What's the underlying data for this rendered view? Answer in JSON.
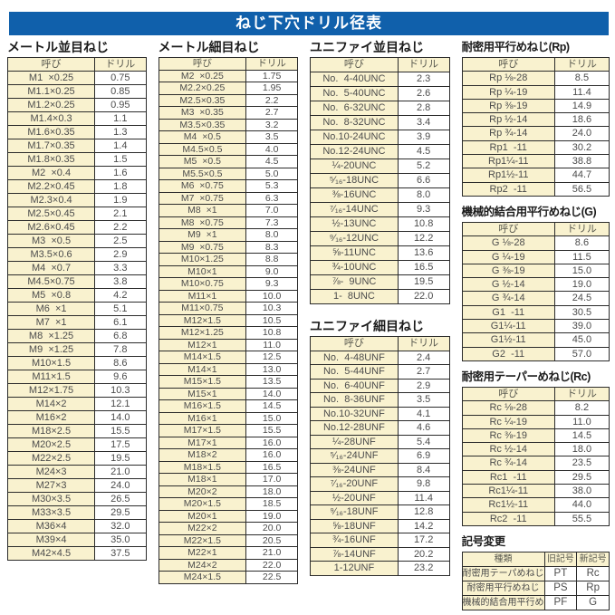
{
  "title": "ねじ下穴ドリル径表",
  "colors": {
    "accent_blue": "#1060ab",
    "cell_yellow": "#f9f2cf",
    "border": "#2b2b2b",
    "text_gray": "#4c4c4c"
  },
  "tables": [
    {
      "key": "metric_coarse",
      "title": "メートル並目ねじ",
      "headers": [
        "呼び",
        "ドリル"
      ],
      "rows": [
        [
          "M1  ×0.25",
          "0.75"
        ],
        [
          "M1.1×0.25",
          "0.85"
        ],
        [
          "M1.2×0.25",
          "0.95"
        ],
        [
          "M1.4×0.3",
          "1.1"
        ],
        [
          "M1.6×0.35",
          "1.3"
        ],
        [
          "M1.7×0.35",
          "1.4"
        ],
        [
          "M1.8×0.35",
          "1.5"
        ],
        [
          "M2  ×0.4",
          "1.6"
        ],
        [
          "M2.2×0.45",
          "1.8"
        ],
        [
          "M2.3×0.4",
          "1.9"
        ],
        [
          "M2.5×0.45",
          "2.1"
        ],
        [
          "M2.6×0.45",
          "2.2"
        ],
        [
          "M3  ×0.5",
          "2.5"
        ],
        [
          "M3.5×0.6",
          "2.9"
        ],
        [
          "M4  ×0.7",
          "3.3"
        ],
        [
          "M4.5×0.75",
          "3.8"
        ],
        [
          "M5  ×0.8",
          "4.2"
        ],
        [
          "M6  ×1",
          "5.1"
        ],
        [
          "M7  ×1",
          "6.1"
        ],
        [
          "M8  ×1.25",
          "6.8"
        ],
        [
          "M9  ×1.25",
          "7.8"
        ],
        [
          "M10×1.5",
          "8.6"
        ],
        [
          "M11×1.5",
          "9.6"
        ],
        [
          "M12×1.75",
          "10.3"
        ],
        [
          "M14×2",
          "12.1"
        ],
        [
          "M16×2",
          "14.0"
        ],
        [
          "M18×2.5",
          "15.5"
        ],
        [
          "M20×2.5",
          "17.5"
        ],
        [
          "M22×2.5",
          "19.5"
        ],
        [
          "M24×3",
          "21.0"
        ],
        [
          "M27×3",
          "24.0"
        ],
        [
          "M30×3.5",
          "26.5"
        ],
        [
          "M33×3.5",
          "29.5"
        ],
        [
          "M36×4",
          "32.0"
        ],
        [
          "M39×4",
          "35.0"
        ],
        [
          "M42×4.5",
          "37.5"
        ]
      ]
    },
    {
      "key": "metric_fine",
      "title": "メートル細目ねじ",
      "headers": [
        "呼び",
        "ドリル"
      ],
      "rows": [
        [
          "M2  ×0.25",
          "1.75"
        ],
        [
          "M2.2×0.25",
          "1.95"
        ],
        [
          "M2.5×0.35",
          "2.2"
        ],
        [
          "M3  ×0.35",
          "2.7"
        ],
        [
          "M3.5×0.35",
          "3.2"
        ],
        [
          "M4  ×0.5",
          "3.5"
        ],
        [
          "M4.5×0.5",
          "4.0"
        ],
        [
          "M5  ×0.5",
          "4.5"
        ],
        [
          "M5.5×0.5",
          "5.0"
        ],
        [
          "M6  ×0.75",
          "5.3"
        ],
        [
          "M7  ×0.75",
          "6.3"
        ],
        [
          "M8  ×1",
          "7.0"
        ],
        [
          "M8  ×0.75",
          "7.3"
        ],
        [
          "M9  ×1",
          "8.0"
        ],
        [
          "M9  ×0.75",
          "8.3"
        ],
        [
          "M10×1.25",
          "8.8"
        ],
        [
          "M10×1",
          "9.0"
        ],
        [
          "M10×0.75",
          "9.3"
        ],
        [
          "M11×1",
          "10.0"
        ],
        [
          "M11×0.75",
          "10.3"
        ],
        [
          "M12×1.5",
          "10.5"
        ],
        [
          "M12×1.25",
          "10.8"
        ],
        [
          "M12×1",
          "11.0"
        ],
        [
          "M14×1.5",
          "12.5"
        ],
        [
          "M14×1",
          "13.0"
        ],
        [
          "M15×1.5",
          "13.5"
        ],
        [
          "M15×1",
          "14.0"
        ],
        [
          "M16×1.5",
          "14.5"
        ],
        [
          "M16×1",
          "15.0"
        ],
        [
          "M17×1.5",
          "15.5"
        ],
        [
          "M17×1",
          "16.0"
        ],
        [
          "M18×2",
          "16.0"
        ],
        [
          "M18×1.5",
          "16.5"
        ],
        [
          "M18×1",
          "17.0"
        ],
        [
          "M20×2",
          "18.0"
        ],
        [
          "M20×1.5",
          "18.5"
        ],
        [
          "M20×1",
          "19.0"
        ],
        [
          "M22×2",
          "20.0"
        ],
        [
          "M22×1.5",
          "20.5"
        ],
        [
          "M22×1",
          "21.0"
        ],
        [
          "M24×2",
          "22.0"
        ],
        [
          "M24×1.5",
          "22.5"
        ]
      ]
    },
    {
      "key": "unified_coarse",
      "title": "ユニファイ並目ねじ",
      "headers": [
        "呼び",
        "ドリル"
      ],
      "rows": [
        [
          "No.  4-40UNC",
          "2.3"
        ],
        [
          "No.  5-40UNC",
          "2.6"
        ],
        [
          "No.  6-32UNC",
          "2.8"
        ],
        [
          "No.  8-32UNC",
          "3.4"
        ],
        [
          "No.10-24UNC",
          "3.9"
        ],
        [
          "No.12-24UNC",
          "4.5"
        ],
        [
          "¼-20UNC",
          "5.2"
        ],
        [
          "⁵⁄₁₆-18UNC",
          "6.6"
        ],
        [
          "⅜-16UNC",
          "8.0"
        ],
        [
          "⁷⁄₁₆-14UNC",
          "9.3"
        ],
        [
          "½-13UNC",
          "10.8"
        ],
        [
          "⁹⁄₁₆-12UNC",
          "12.2"
        ],
        [
          "⅝-11UNC",
          "13.6"
        ],
        [
          "¾-10UNC",
          "16.5"
        ],
        [
          "⅞-  9UNC",
          "19.5"
        ],
        [
          "1-  8UNC",
          "22.0"
        ]
      ]
    },
    {
      "key": "unified_fine",
      "title": "ユニファイ細目ねじ",
      "headers": [
        "呼び",
        "ドリル"
      ],
      "rows": [
        [
          "No.  4-48UNF",
          "2.4"
        ],
        [
          "No.  5-44UNF",
          "2.7"
        ],
        [
          "No.  6-40UNF",
          "2.9"
        ],
        [
          "No.  8-36UNF",
          "3.5"
        ],
        [
          "No.10-32UNF",
          "4.1"
        ],
        [
          "No.12-28UNF",
          "4.6"
        ],
        [
          "¼-28UNF",
          "5.4"
        ],
        [
          "⁵⁄₁₆-24UNF",
          "6.9"
        ],
        [
          "⅜-24UNF",
          "8.4"
        ],
        [
          "⁷⁄₁₆-20UNF",
          "9.8"
        ],
        [
          "½-20UNF",
          "11.4"
        ],
        [
          "⁹⁄₁₆-18UNF",
          "12.8"
        ],
        [
          "⅝-18UNF",
          "14.2"
        ],
        [
          "¾-16UNF",
          "17.2"
        ],
        [
          "⅞-14UNF",
          "20.2"
        ],
        [
          "1-12UNF",
          "23.2"
        ]
      ]
    },
    {
      "key": "rp_parallel",
      "title": "耐密用平行めねじ(Rp)",
      "headers": [
        "呼び",
        "ドリル"
      ],
      "rows": [
        [
          "Rp ⅛-28",
          "8.5"
        ],
        [
          "Rp ¼-19",
          "11.4"
        ],
        [
          "Rp ⅜-19",
          "14.9"
        ],
        [
          "Rp ½-14",
          "18.6"
        ],
        [
          "Rp ¾-14",
          "24.0"
        ],
        [
          "Rp1  -11",
          "30.2"
        ],
        [
          "Rp1¼-11",
          "38.8"
        ],
        [
          "Rp1½-11",
          "44.7"
        ],
        [
          "Rp2  -11",
          "56.5"
        ]
      ]
    },
    {
      "key": "g_parallel",
      "title": "機械的結合用平行めねじ(G)",
      "headers": [
        "呼び",
        "ドリル"
      ],
      "rows": [
        [
          "G ⅛-28",
          "8.6"
        ],
        [
          "G ¼-19",
          "11.5"
        ],
        [
          "G ⅜-19",
          "15.0"
        ],
        [
          "G ½-14",
          "19.0"
        ],
        [
          "G ¾-14",
          "24.5"
        ],
        [
          "G1  -11",
          "30.5"
        ],
        [
          "G1¼-11",
          "39.0"
        ],
        [
          "G1½-11",
          "45.0"
        ],
        [
          "G2  -11",
          "57.0"
        ]
      ]
    },
    {
      "key": "rc_taper",
      "title": "耐密用テーパーめねじ(Rc)",
      "headers": [
        "呼び",
        "ドリル"
      ],
      "rows": [
        [
          "Rc ⅛-28",
          "8.2"
        ],
        [
          "Rc ¼-19",
          "11.0"
        ],
        [
          "Rc ⅜-19",
          "14.5"
        ],
        [
          "Rc ½-14",
          "18.0"
        ],
        [
          "Rc ¾-14",
          "23.5"
        ],
        [
          "Rc1  -11",
          "29.5"
        ],
        [
          "Rc1¼-11",
          "38.0"
        ],
        [
          "Rc1½-11",
          "44.0"
        ],
        [
          "Rc2  -11",
          "55.5"
        ]
      ]
    },
    {
      "key": "symbol_change",
      "title": "記号変更",
      "headers": [
        "種類",
        "旧記号",
        "新記号"
      ],
      "rows": [
        [
          "耐密用テーパめねじ",
          "PT",
          "Rc"
        ],
        [
          "耐密用平行めねじ",
          "PS",
          "Rp"
        ],
        [
          "機械的結合用平行めねじ",
          "PF",
          "G"
        ]
      ]
    }
  ]
}
